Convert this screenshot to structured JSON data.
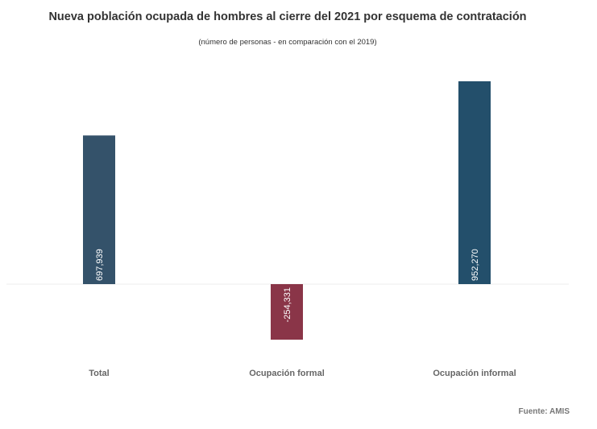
{
  "chart_data": {
    "type": "bar",
    "title": "Nueva población ocupada de hombres al cierre del 2021 por esquema de contratación",
    "subtitle": "(número de personas - en comparación con el 2019)",
    "categories": [
      "Total",
      "Ocupación formal",
      "Ocupación informal"
    ],
    "values": [
      697939,
      -254331,
      952270
    ],
    "data_labels": [
      "697,939",
      "-254,331",
      "952,270"
    ],
    "colors": [
      "#34526a",
      "#8a3548",
      "#234f6b"
    ],
    "ylim": [
      -254331,
      952270
    ],
    "grid": false,
    "legend": "none",
    "source": "Fuente: AMIS"
  }
}
